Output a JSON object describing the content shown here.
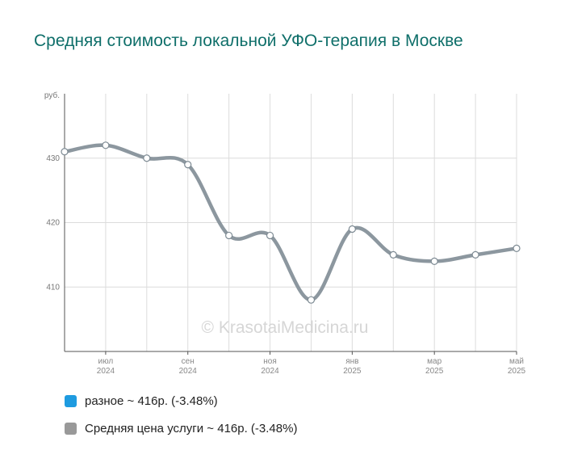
{
  "title": "Средняя стоимость локальной УФО-терапия в Москве",
  "watermark": "© KrasotaiMedicina.ru",
  "chart_data": {
    "type": "line",
    "ylabel": "руб.",
    "ylim": [
      400,
      440
    ],
    "yticks": [
      410,
      420,
      430
    ],
    "grid": true,
    "x": [
      "2024-06",
      "2024-07",
      "2024-08",
      "2024-09",
      "2024-10",
      "2024-11",
      "2024-12",
      "2025-01",
      "2025-02",
      "2025-03",
      "2025-04",
      "2025-05"
    ],
    "xtick_labels": [
      {
        "month": "июл",
        "year": "2024"
      },
      {
        "month": "сен",
        "year": "2024"
      },
      {
        "month": "ноя",
        "year": "2024"
      },
      {
        "month": "янв",
        "year": "2025"
      },
      {
        "month": "мар",
        "year": "2025"
      },
      {
        "month": "май",
        "year": "2025"
      }
    ],
    "series": [
      {
        "name": "разное",
        "color": "#1e9be0",
        "values": [
          431,
          432,
          430,
          429,
          418,
          418,
          408,
          419,
          415,
          414,
          415,
          416
        ]
      },
      {
        "name": "Средняя цена услуги",
        "color": "#8c979f",
        "values": [
          431,
          432,
          430,
          429,
          418,
          418,
          408,
          419,
          415,
          414,
          415,
          416
        ]
      }
    ],
    "legend_position": "bottom"
  },
  "legend": [
    {
      "label": "разное ~ 416р. (-3.48%)",
      "color": "#1e9be0"
    },
    {
      "label": "Средняя цена услуги ~ 416р. (-3.48%)",
      "color": "#999999"
    }
  ]
}
